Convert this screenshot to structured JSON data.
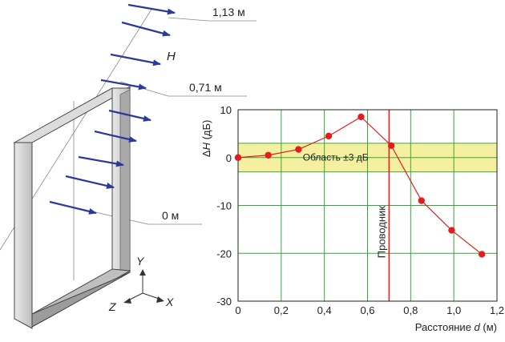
{
  "diagram": {
    "field_symbol": "H",
    "level_labels": [
      "1,13 м",
      "0,71 м",
      "0 м"
    ],
    "axis_labels": {
      "y": "Y",
      "z": "Z",
      "x": "X"
    }
  },
  "chart_data": {
    "type": "line",
    "x": [
      0,
      0.14,
      0.28,
      0.42,
      0.57,
      0.71,
      0.85,
      0.99,
      1.13
    ],
    "series": [
      {
        "values": [
          0,
          0.5,
          1.7,
          4.5,
          8.5,
          2.5,
          -9,
          -15.2,
          -20.2
        ]
      }
    ],
    "xlabel_prefix": "Расстояние ",
    "xlabel_var": "d",
    "xlabel_suffix": " (м)",
    "ylabel_prefix": "Δ",
    "ylabel_var": "H",
    "ylabel_suffix": " (дБ)",
    "xlim": [
      0,
      1.2
    ],
    "ylim": [
      -30,
      10
    ],
    "x_ticks": [
      "0",
      "0,2",
      "0,4",
      "0,6",
      "0,8",
      "1,0",
      "1,2"
    ],
    "y_ticks": [
      "10",
      "0",
      "-10",
      "-20",
      "-30"
    ],
    "grid": true,
    "band": {
      "from": -3,
      "to": 3,
      "label": "Область ±3 дБ",
      "color": "#f5f0a0"
    },
    "marker_line": {
      "x": 0.7,
      "label": "Проводник",
      "color": "#d9232a"
    },
    "line_color": "#e01e1e",
    "grid_color": "#3aa63a"
  }
}
